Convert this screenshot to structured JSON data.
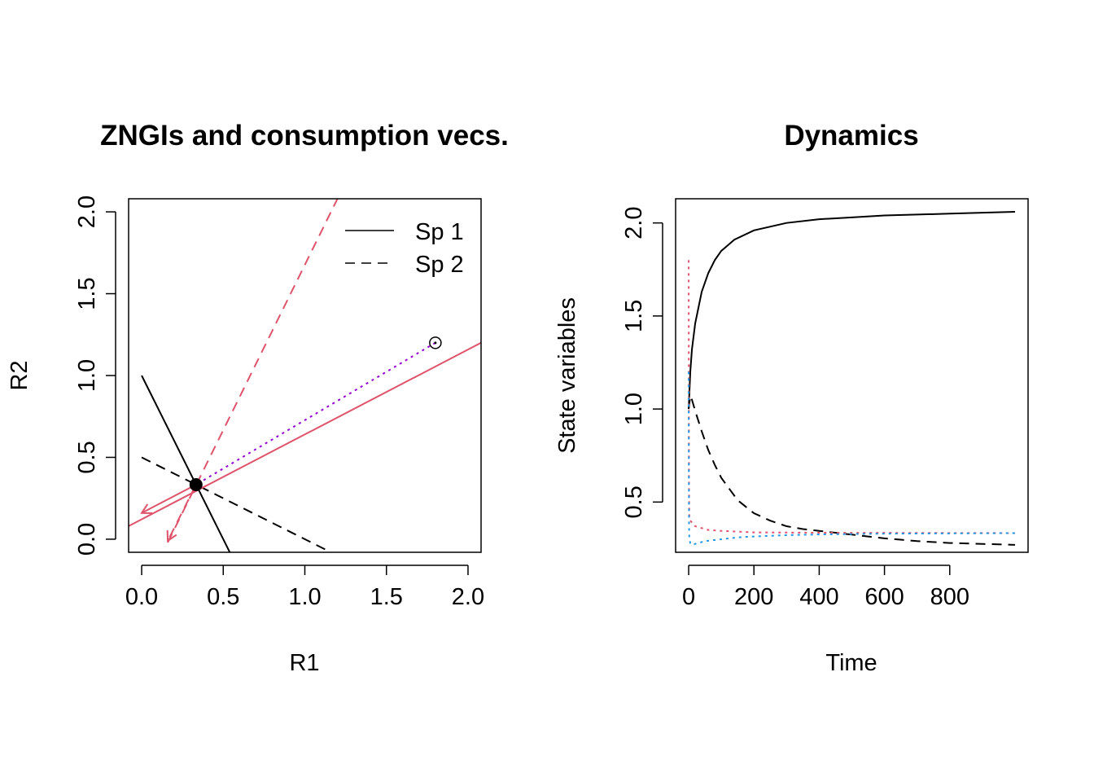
{
  "chart_data": [
    {
      "type": "line",
      "title": "ZNGIs and consumption vecs.",
      "xlabel": "R1",
      "ylabel": "R2",
      "xlim": [
        -0.08,
        2.08
      ],
      "ylim": [
        -0.08,
        2.08
      ],
      "xticks": [
        0,
        0.5,
        1,
        1.5,
        2
      ],
      "yticks": [
        0,
        0.5,
        1,
        1.5,
        2
      ],
      "xtick_labels": [
        "0.0",
        "0.5",
        "1.0",
        "1.5",
        "2.0"
      ],
      "ytick_labels": [
        "0.0",
        "0.5",
        "1.0",
        "1.5",
        "2.0"
      ],
      "grid": false,
      "legend": {
        "placement": "top-right",
        "entries": [
          {
            "label": "Sp 1",
            "linestyle": "solid"
          },
          {
            "label": "Sp 2",
            "linestyle": "dashed"
          }
        ]
      },
      "series": [
        {
          "key": "zngi1",
          "points": [
            [
              0,
              1
            ],
            [
              0.54,
              -0.08
            ]
          ],
          "linestyle": "solid",
          "color": "#000000"
        },
        {
          "key": "zngi2",
          "points": [
            [
              0,
              0.5
            ],
            [
              1.16,
              -0.08
            ]
          ],
          "linestyle": "dashed",
          "color": "#000000"
        },
        {
          "key": "cons1",
          "points": [
            [
              -0.08,
              0.08
            ],
            [
              2.08,
              1.2
            ]
          ],
          "linestyle": "solid",
          "color": "#DF536B"
        },
        {
          "key": "cons2",
          "points": [
            [
              0.16,
              -0.02
            ],
            [
              1.2,
              2.08
            ]
          ],
          "linestyle": "dashed",
          "color": "#DF536B"
        },
        {
          "key": "supply",
          "points": [
            [
              1.8,
              1.2
            ],
            [
              0.333,
              0.333
            ]
          ],
          "linestyle": "dotted",
          "color": "#9400D3"
        }
      ],
      "arrows": [
        {
          "from": [
            0.333,
            0.333
          ],
          "to": [
            0,
            0.16
          ],
          "linestyle": "solid",
          "color": "#DF536B"
        },
        {
          "from": [
            0.333,
            0.333
          ],
          "to": [
            0.16,
            -0.01
          ],
          "linestyle": "dashed",
          "color": "#DF536B"
        }
      ],
      "points": [
        {
          "key": "equilibrium",
          "x": 0.333,
          "y": 0.333,
          "marker": "filled-circle",
          "color": "#000000"
        },
        {
          "key": "supply-point",
          "x": 1.8,
          "y": 1.2,
          "marker": "circle-dot",
          "color": "#000000"
        }
      ]
    },
    {
      "type": "line",
      "title": "Dynamics",
      "xlabel": "Time",
      "ylabel": "State variables",
      "xlim": [
        -40,
        1040
      ],
      "ylim": [
        0.23,
        2.13
      ],
      "xticks": [
        0,
        200,
        400,
        600,
        800
      ],
      "yticks": [
        0.5,
        1,
        1.5,
        2
      ],
      "xtick_labels": [
        "0",
        "200",
        "400",
        "600",
        "800"
      ],
      "ytick_labels": [
        "0.5",
        "1.0",
        "1.5",
        "2.0"
      ],
      "grid": false,
      "series": [
        {
          "key": "sp1",
          "linestyle": "solid",
          "color": "#000000",
          "x": [
            0,
            5,
            10,
            20,
            40,
            60,
            80,
            100,
            140,
            200,
            300,
            400,
            500,
            600,
            700,
            800,
            900,
            1000
          ],
          "y": [
            1.0,
            1.2,
            1.32,
            1.46,
            1.63,
            1.73,
            1.8,
            1.85,
            1.91,
            1.96,
            2.0,
            2.02,
            2.03,
            2.04,
            2.045,
            2.05,
            2.055,
            2.06
          ]
        },
        {
          "key": "sp2",
          "linestyle": "dashed",
          "color": "#000000",
          "x": [
            0,
            5,
            10,
            20,
            40,
            60,
            80,
            100,
            150,
            200,
            250,
            300,
            350,
            400,
            500,
            600,
            700,
            800,
            900,
            1000
          ],
          "y": [
            1.0,
            1.07,
            1.05,
            0.99,
            0.88,
            0.78,
            0.7,
            0.63,
            0.51,
            0.44,
            0.4,
            0.37,
            0.355,
            0.345,
            0.325,
            0.305,
            0.29,
            0.28,
            0.275,
            0.27
          ]
        },
        {
          "key": "r1",
          "linestyle": "dotted",
          "color": "#DF536B",
          "x": [
            0,
            0.5,
            1,
            2,
            5,
            10,
            20,
            40,
            60,
            100,
            200,
            400,
            1000
          ],
          "y": [
            1.8,
            1.2,
            0.6,
            0.42,
            0.4,
            0.39,
            0.37,
            0.36,
            0.35,
            0.345,
            0.337,
            0.335,
            0.333
          ]
        },
        {
          "key": "r2",
          "linestyle": "dotted",
          "color": "#2297E6",
          "x": [
            0,
            0.5,
            1,
            2,
            5,
            10,
            20,
            50,
            100,
            150,
            200,
            300,
            400,
            600,
            1000
          ],
          "y": [
            1.2,
            0.7,
            0.4,
            0.3,
            0.28,
            0.27,
            0.275,
            0.29,
            0.3,
            0.31,
            0.315,
            0.322,
            0.326,
            0.33,
            0.333
          ]
        }
      ]
    }
  ]
}
